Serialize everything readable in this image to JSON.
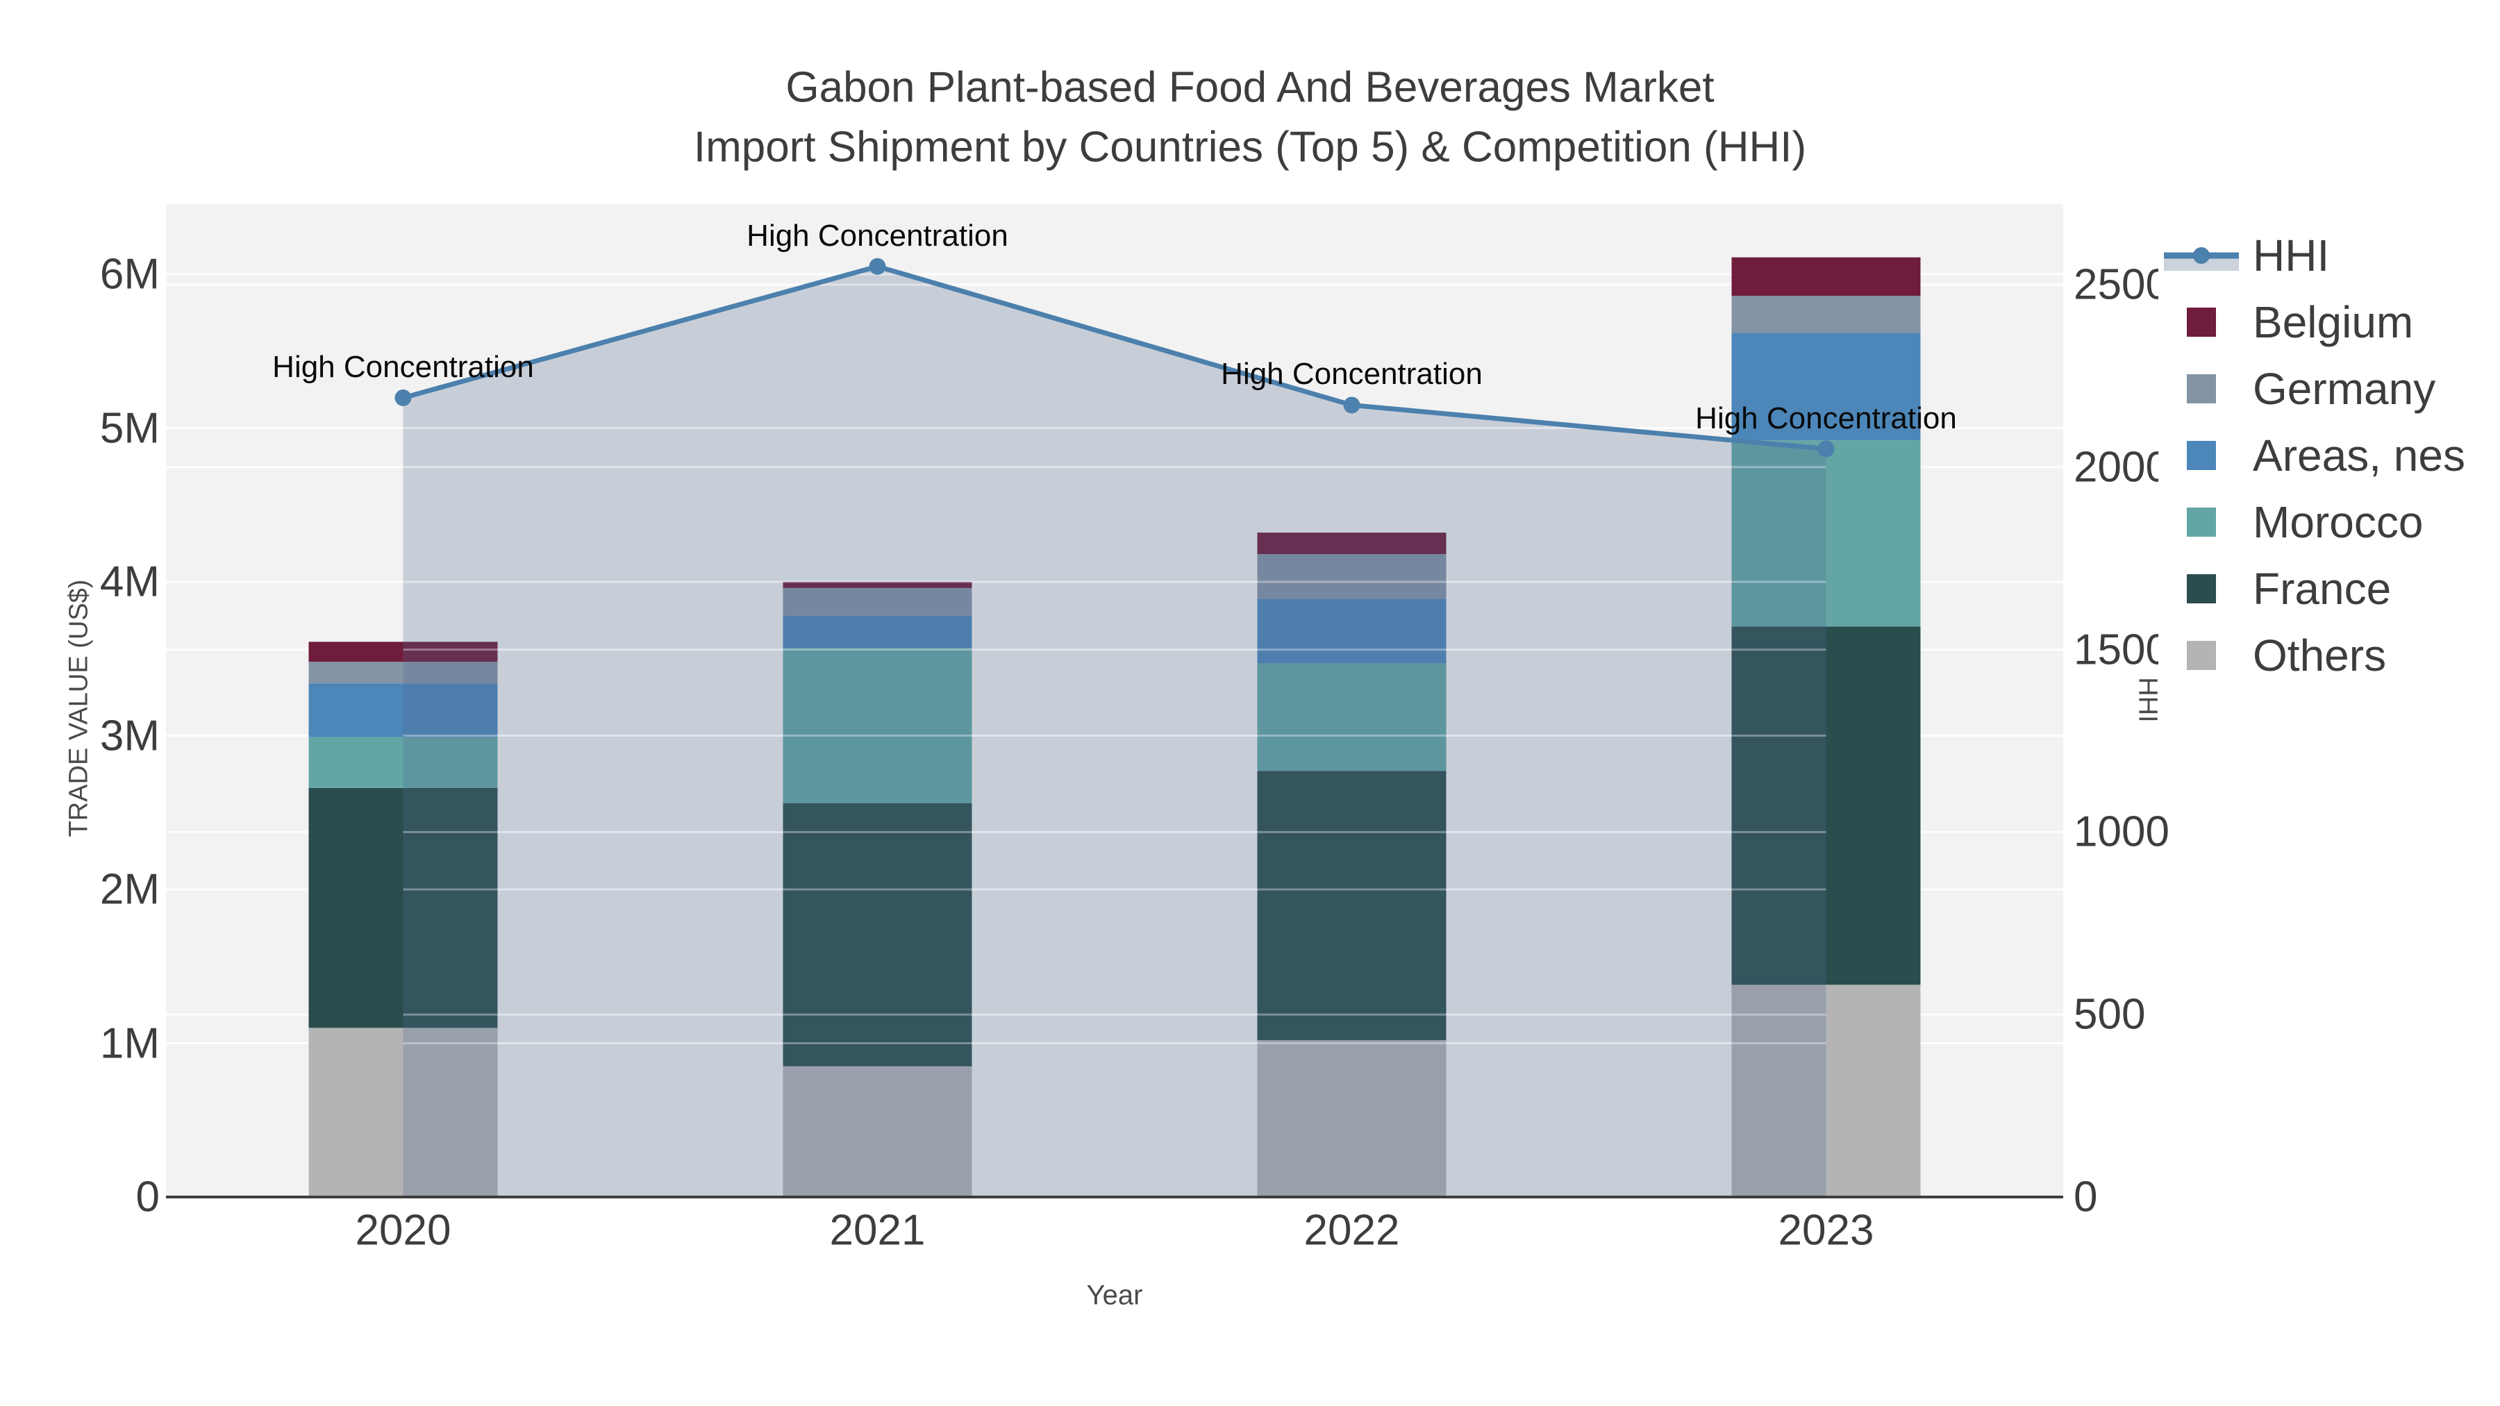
{
  "chart_data": {
    "type": "bar+line",
    "title_line1": "Gabon Plant-based Food And Beverages Market",
    "title_line2": "Import Shipment by Countries (Top 5) & Competition (HHI)",
    "xlabel": "Year",
    "ylabel_left": "TRADE VALUE (US$)",
    "ylabel_right": "HHI",
    "categories": [
      "2020",
      "2021",
      "2022",
      "2023"
    ],
    "bar_mode": "stacked",
    "series": [
      {
        "name": "Others",
        "color": "#b4b4b5",
        "values_usd": [
          1100000,
          850000,
          1020000,
          1380000
        ]
      },
      {
        "name": "France",
        "color": "#2a4d4e",
        "values_usd": [
          1560000,
          1710000,
          1750000,
          2330000
        ]
      },
      {
        "name": "Morocco",
        "color": "#63a6a5",
        "values_usd": [
          330000,
          1010000,
          700000,
          1210000
        ]
      },
      {
        "name": "Areas, nes",
        "color": "#4d86b8",
        "values_usd": [
          350000,
          210000,
          420000,
          700000
        ]
      },
      {
        "name": "Germany",
        "color": "#8494a5",
        "values_usd": [
          140000,
          180000,
          290000,
          240000
        ]
      },
      {
        "name": "Belgium",
        "color": "#6f1c3d",
        "values_usd": [
          130000,
          40000,
          140000,
          250000
        ]
      }
    ],
    "line_series": {
      "name": "HHI",
      "color": "#4c80ad",
      "fill_color": "rgba(82,104,142,0.26)",
      "axis": "right",
      "values": [
        2190,
        2550,
        2170,
        2050
      ]
    },
    "annotations": [
      "High Concentration",
      "High Concentration",
      "High Concentration",
      "High Concentration"
    ],
    "y_left": {
      "ticks": [
        "0",
        "1M",
        "2M",
        "3M",
        "4M",
        "5M",
        "6M"
      ],
      "tick_values_usd": [
        0,
        1000000,
        2000000,
        3000000,
        4000000,
        5000000,
        6000000
      ],
      "range_usd": [
        0,
        6456000
      ],
      "grid": true
    },
    "y_right": {
      "ticks": [
        "0",
        "500",
        "1000",
        "1500",
        "2000",
        "2500"
      ],
      "tick_values": [
        0,
        500,
        1000,
        1500,
        2000,
        2500
      ],
      "range": [
        0,
        2720
      ],
      "grid": true
    },
    "legend": [
      {
        "label": "HHI",
        "type": "line",
        "color": "#4c80ad"
      },
      {
        "label": "Belgium",
        "type": "swatch",
        "color": "#6f1c3d"
      },
      {
        "label": "Germany",
        "type": "swatch",
        "color": "#8494a5"
      },
      {
        "label": "Areas, nes",
        "type": "swatch",
        "color": "#4d86b8"
      },
      {
        "label": "Morocco",
        "type": "swatch",
        "color": "#63a6a5"
      },
      {
        "label": "France",
        "type": "swatch",
        "color": "#2a4d4e"
      },
      {
        "label": "Others",
        "type": "swatch",
        "color": "#b4b4b5"
      }
    ],
    "plot_bg": "#f2f2f2",
    "grid_color": "#ffffff",
    "axis_line_color": "#3f3f3f"
  }
}
